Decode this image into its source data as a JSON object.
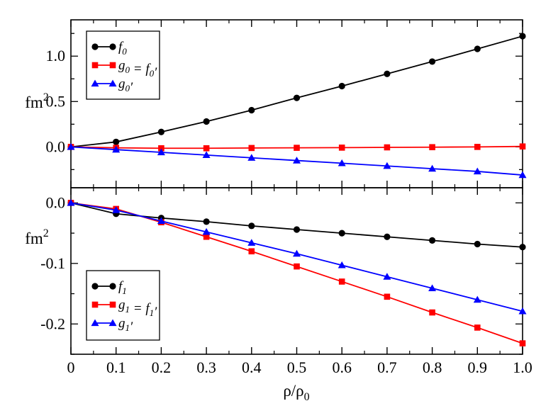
{
  "chart_data": [
    {
      "type": "line",
      "ylabel": "fm",
      "ylabel_sup": "2",
      "ylim": [
        -0.45,
        1.4
      ],
      "xlim": [
        0,
        1.0
      ],
      "yticks": [
        0.0,
        0.5,
        1.0
      ],
      "ytick_labels": [
        "0.0",
        "0.5",
        "1.0"
      ],
      "legend_position": "top-left",
      "x": [
        0,
        0.1,
        0.2,
        0.3,
        0.4,
        0.5,
        0.6,
        0.7,
        0.8,
        0.9,
        1.0
      ],
      "series": [
        {
          "name": "f0",
          "label_parts": [
            {
              "t": "f"
            },
            {
              "t": "0",
              "sub": true
            }
          ],
          "color": "#000000",
          "marker": "circle",
          "values": [
            0,
            0.055,
            0.165,
            0.28,
            0.405,
            0.54,
            0.67,
            0.805,
            0.94,
            1.08,
            1.22
          ]
        },
        {
          "name": "g0 = f0′",
          "label_parts": [
            {
              "t": "g"
            },
            {
              "t": "0",
              "sub": true
            },
            {
              "t": " = f"
            },
            {
              "t": "0",
              "sub": true
            },
            {
              "t": "′"
            }
          ],
          "color": "#ff0000",
          "marker": "square",
          "values": [
            0,
            -0.01,
            -0.015,
            -0.015,
            -0.012,
            -0.01,
            -0.008,
            -0.005,
            -0.003,
            0.0,
            0.005
          ]
        },
        {
          "name": "g0′",
          "label_parts": [
            {
              "t": "g"
            },
            {
              "t": "0",
              "sub": true
            },
            {
              "t": "′"
            }
          ],
          "color": "#0000ff",
          "marker": "triangle",
          "values": [
            0,
            -0.03,
            -0.06,
            -0.09,
            -0.12,
            -0.15,
            -0.18,
            -0.21,
            -0.24,
            -0.27,
            -0.31
          ]
        }
      ]
    },
    {
      "type": "line",
      "ylabel": "fm",
      "ylabel_sup": "2",
      "ylim": [
        -0.25,
        0.025
      ],
      "xlim": [
        0,
        1.0
      ],
      "yticks": [
        -0.2,
        -0.1,
        0.0
      ],
      "ytick_labels": [
        "-0.2",
        "-0.1",
        "0.0"
      ],
      "legend_position": "bottom-left",
      "x": [
        0,
        0.1,
        0.2,
        0.3,
        0.4,
        0.5,
        0.6,
        0.7,
        0.8,
        0.9,
        1.0
      ],
      "series": [
        {
          "name": "f1",
          "label_parts": [
            {
              "t": "f"
            },
            {
              "t": "1",
              "sub": true
            }
          ],
          "color": "#000000",
          "marker": "circle",
          "values": [
            0,
            -0.018,
            -0.025,
            -0.031,
            -0.038,
            -0.044,
            -0.05,
            -0.056,
            -0.062,
            -0.068,
            -0.073
          ]
        },
        {
          "name": "g1 = f1′",
          "label_parts": [
            {
              "t": "g"
            },
            {
              "t": "1",
              "sub": true
            },
            {
              "t": " = f"
            },
            {
              "t": "1",
              "sub": true
            },
            {
              "t": "′"
            }
          ],
          "color": "#ff0000",
          "marker": "square",
          "values": [
            0,
            -0.01,
            -0.032,
            -0.056,
            -0.08,
            -0.105,
            -0.13,
            -0.155,
            -0.181,
            -0.206,
            -0.232
          ]
        },
        {
          "name": "g1′",
          "label_parts": [
            {
              "t": "g"
            },
            {
              "t": "1",
              "sub": true
            },
            {
              "t": "′"
            }
          ],
          "color": "#0000ff",
          "marker": "triangle",
          "values": [
            0,
            -0.012,
            -0.03,
            -0.048,
            -0.066,
            -0.084,
            -0.103,
            -0.122,
            -0.141,
            -0.16,
            -0.179
          ]
        }
      ]
    }
  ],
  "x_axis": {
    "label": "ρ/ρ",
    "label_sub": "0",
    "ticks": [
      0,
      0.1,
      0.2,
      0.3,
      0.4,
      0.5,
      0.6,
      0.7,
      0.8,
      0.9,
      1.0
    ],
    "tick_labels": [
      "0",
      "0.1",
      "0.2",
      "0.3",
      "0.4",
      "0.5",
      "0.6",
      "0.7",
      "0.8",
      "0.9",
      "1.0"
    ]
  }
}
